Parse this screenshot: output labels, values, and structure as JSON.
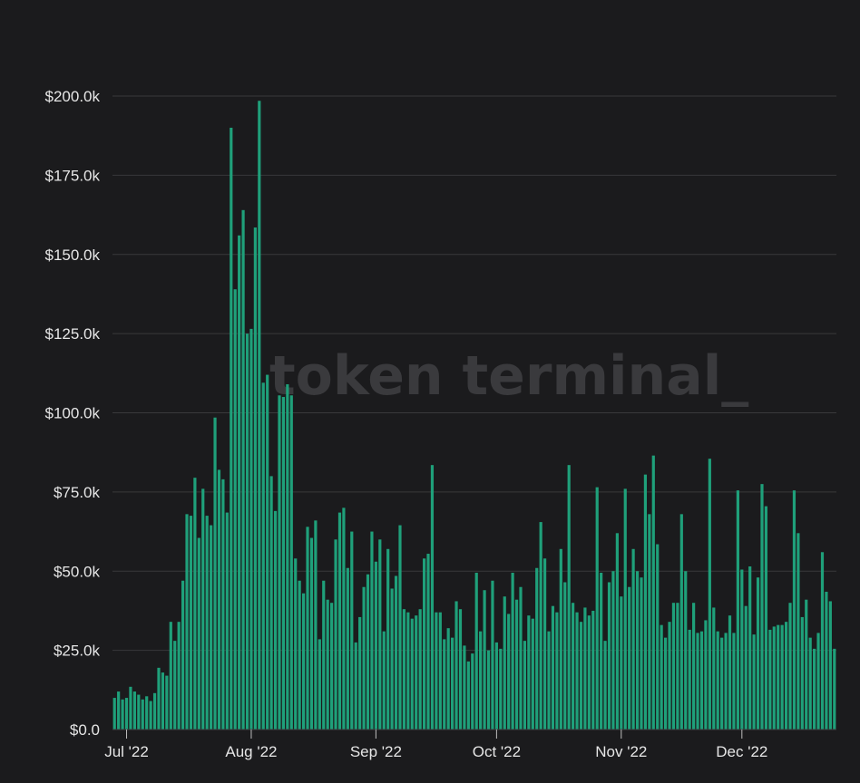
{
  "watermark": "token terminal_",
  "chart_data": {
    "type": "bar",
    "ylim": [
      0,
      200000
    ],
    "grid": true,
    "bar_color": "#1fa07a",
    "background": "#1b1b1d",
    "y_ticks": [
      {
        "value": 0,
        "label": "$0.0"
      },
      {
        "value": 25000,
        "label": "$25.0k"
      },
      {
        "value": 50000,
        "label": "$50.0k"
      },
      {
        "value": 75000,
        "label": "$75.0k"
      },
      {
        "value": 100000,
        "label": "$100.0k"
      },
      {
        "value": 125000,
        "label": "$125.0k"
      },
      {
        "value": 150000,
        "label": "$150.0k"
      },
      {
        "value": 175000,
        "label": "$175.0k"
      },
      {
        "value": 200000,
        "label": "$200.0k"
      }
    ],
    "x_ticks": [
      {
        "index": 3,
        "label": "Jul '22"
      },
      {
        "index": 34,
        "label": "Aug '22"
      },
      {
        "index": 65,
        "label": "Sep '22"
      },
      {
        "index": 95,
        "label": "Oct '22"
      },
      {
        "index": 126,
        "label": "Nov '22"
      },
      {
        "index": 156,
        "label": "Dec '22"
      }
    ],
    "start_date": "2022-06-28",
    "values": [
      10000,
      12000,
      9500,
      10000,
      13500,
      12000,
      11000,
      9500,
      10500,
      9000,
      11500,
      19500,
      18000,
      17000,
      34000,
      28000,
      34000,
      47000,
      68000,
      67500,
      79500,
      60500,
      76000,
      67500,
      64500,
      98500,
      82000,
      79000,
      68500,
      190000,
      139000,
      156000,
      164000,
      125000,
      126500,
      158500,
      198500,
      109500,
      112000,
      80000,
      69000,
      105500,
      105000,
      109000,
      105500,
      54000,
      47000,
      43000,
      64000,
      60500,
      66000,
      28500,
      47000,
      41000,
      40000,
      60000,
      68500,
      70000,
      51000,
      62500,
      27500,
      35500,
      45000,
      49000,
      62500,
      53000,
      60000,
      31000,
      57000,
      44500,
      48500,
      64500,
      38000,
      37000,
      35000,
      36000,
      38000,
      54000,
      55500,
      83500,
      37000,
      37000,
      28500,
      32000,
      29000,
      40500,
      38000,
      26500,
      21500,
      24000,
      49500,
      31000,
      44000,
      25000,
      47000,
      27500,
      25500,
      42000,
      36500,
      49500,
      41000,
      45000,
      28000,
      36000,
      35000,
      51000,
      65500,
      54000,
      31000,
      39000,
      37000,
      57000,
      46500,
      83500,
      40000,
      37000,
      34000,
      38500,
      36000,
      37500,
      76500,
      49500,
      28000,
      46500,
      50000,
      62000,
      42000,
      76000,
      45000,
      57000,
      50000,
      48000,
      80500,
      68000,
      86500,
      58500,
      33000,
      29000,
      34000,
      40000,
      40000,
      68000,
      50000,
      31500,
      40000,
      30500,
      31000,
      34500,
      85500,
      38500,
      31000,
      29000,
      30500,
      36000,
      30500,
      75500,
      50500,
      39000,
      51500,
      30000,
      48000,
      77500,
      70500,
      31500,
      32500,
      33000,
      33000,
      34000,
      40000,
      75500,
      62000,
      35500,
      41000,
      29000,
      25500,
      30500,
      56000,
      43500,
      40500,
      25500
    ]
  }
}
